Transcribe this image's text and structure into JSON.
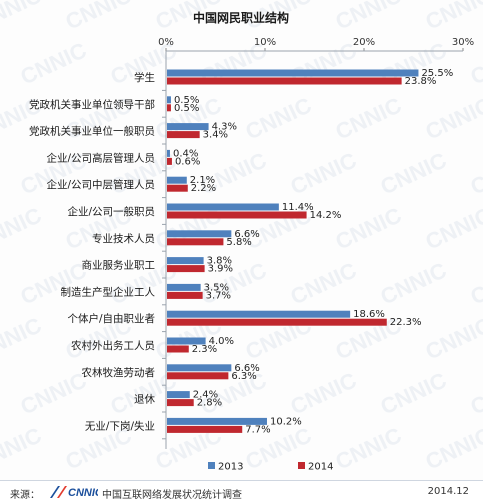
{
  "chart_data": {
    "type": "bar",
    "orientation": "horizontal",
    "title": "中国网民职业结构",
    "categories": [
      "学生",
      "党政机关事业单位领导干部",
      "党政机关事业单位一般职员",
      "企业/公司高层管理人员",
      "企业/公司中层管理人员",
      "企业/公司一般职员",
      "专业技术人员",
      "商业服务业职工",
      "制造生产型企业工人",
      "个体户/自由职业者",
      "农村外出务工人员",
      "农林牧渔劳动者",
      "退休",
      "无业/下岗/失业"
    ],
    "series": [
      {
        "name": "2013",
        "color": "#4f81bd",
        "values": [
          25.5,
          0.5,
          4.3,
          0.4,
          2.1,
          11.4,
          6.6,
          3.8,
          3.5,
          18.6,
          4.0,
          6.6,
          2.4,
          10.2
        ]
      },
      {
        "name": "2014",
        "color": "#c0282f",
        "values": [
          23.8,
          0.5,
          3.4,
          0.6,
          2.2,
          14.2,
          5.8,
          3.9,
          3.7,
          22.3,
          2.3,
          6.3,
          2.8,
          7.7
        ]
      }
    ],
    "xlim": [
      0,
      30
    ],
    "xticks": [
      "0%",
      "10%",
      "20%",
      "30%"
    ],
    "value_suffix": "%",
    "legend_position": "bottom",
    "grid": false
  },
  "watermark": "CNNIC",
  "footer": {
    "source_label": "来源：",
    "logo_text": "CNNIC",
    "survey_text": "中国互联网络发展状况统计调查",
    "date": "2014.12"
  }
}
